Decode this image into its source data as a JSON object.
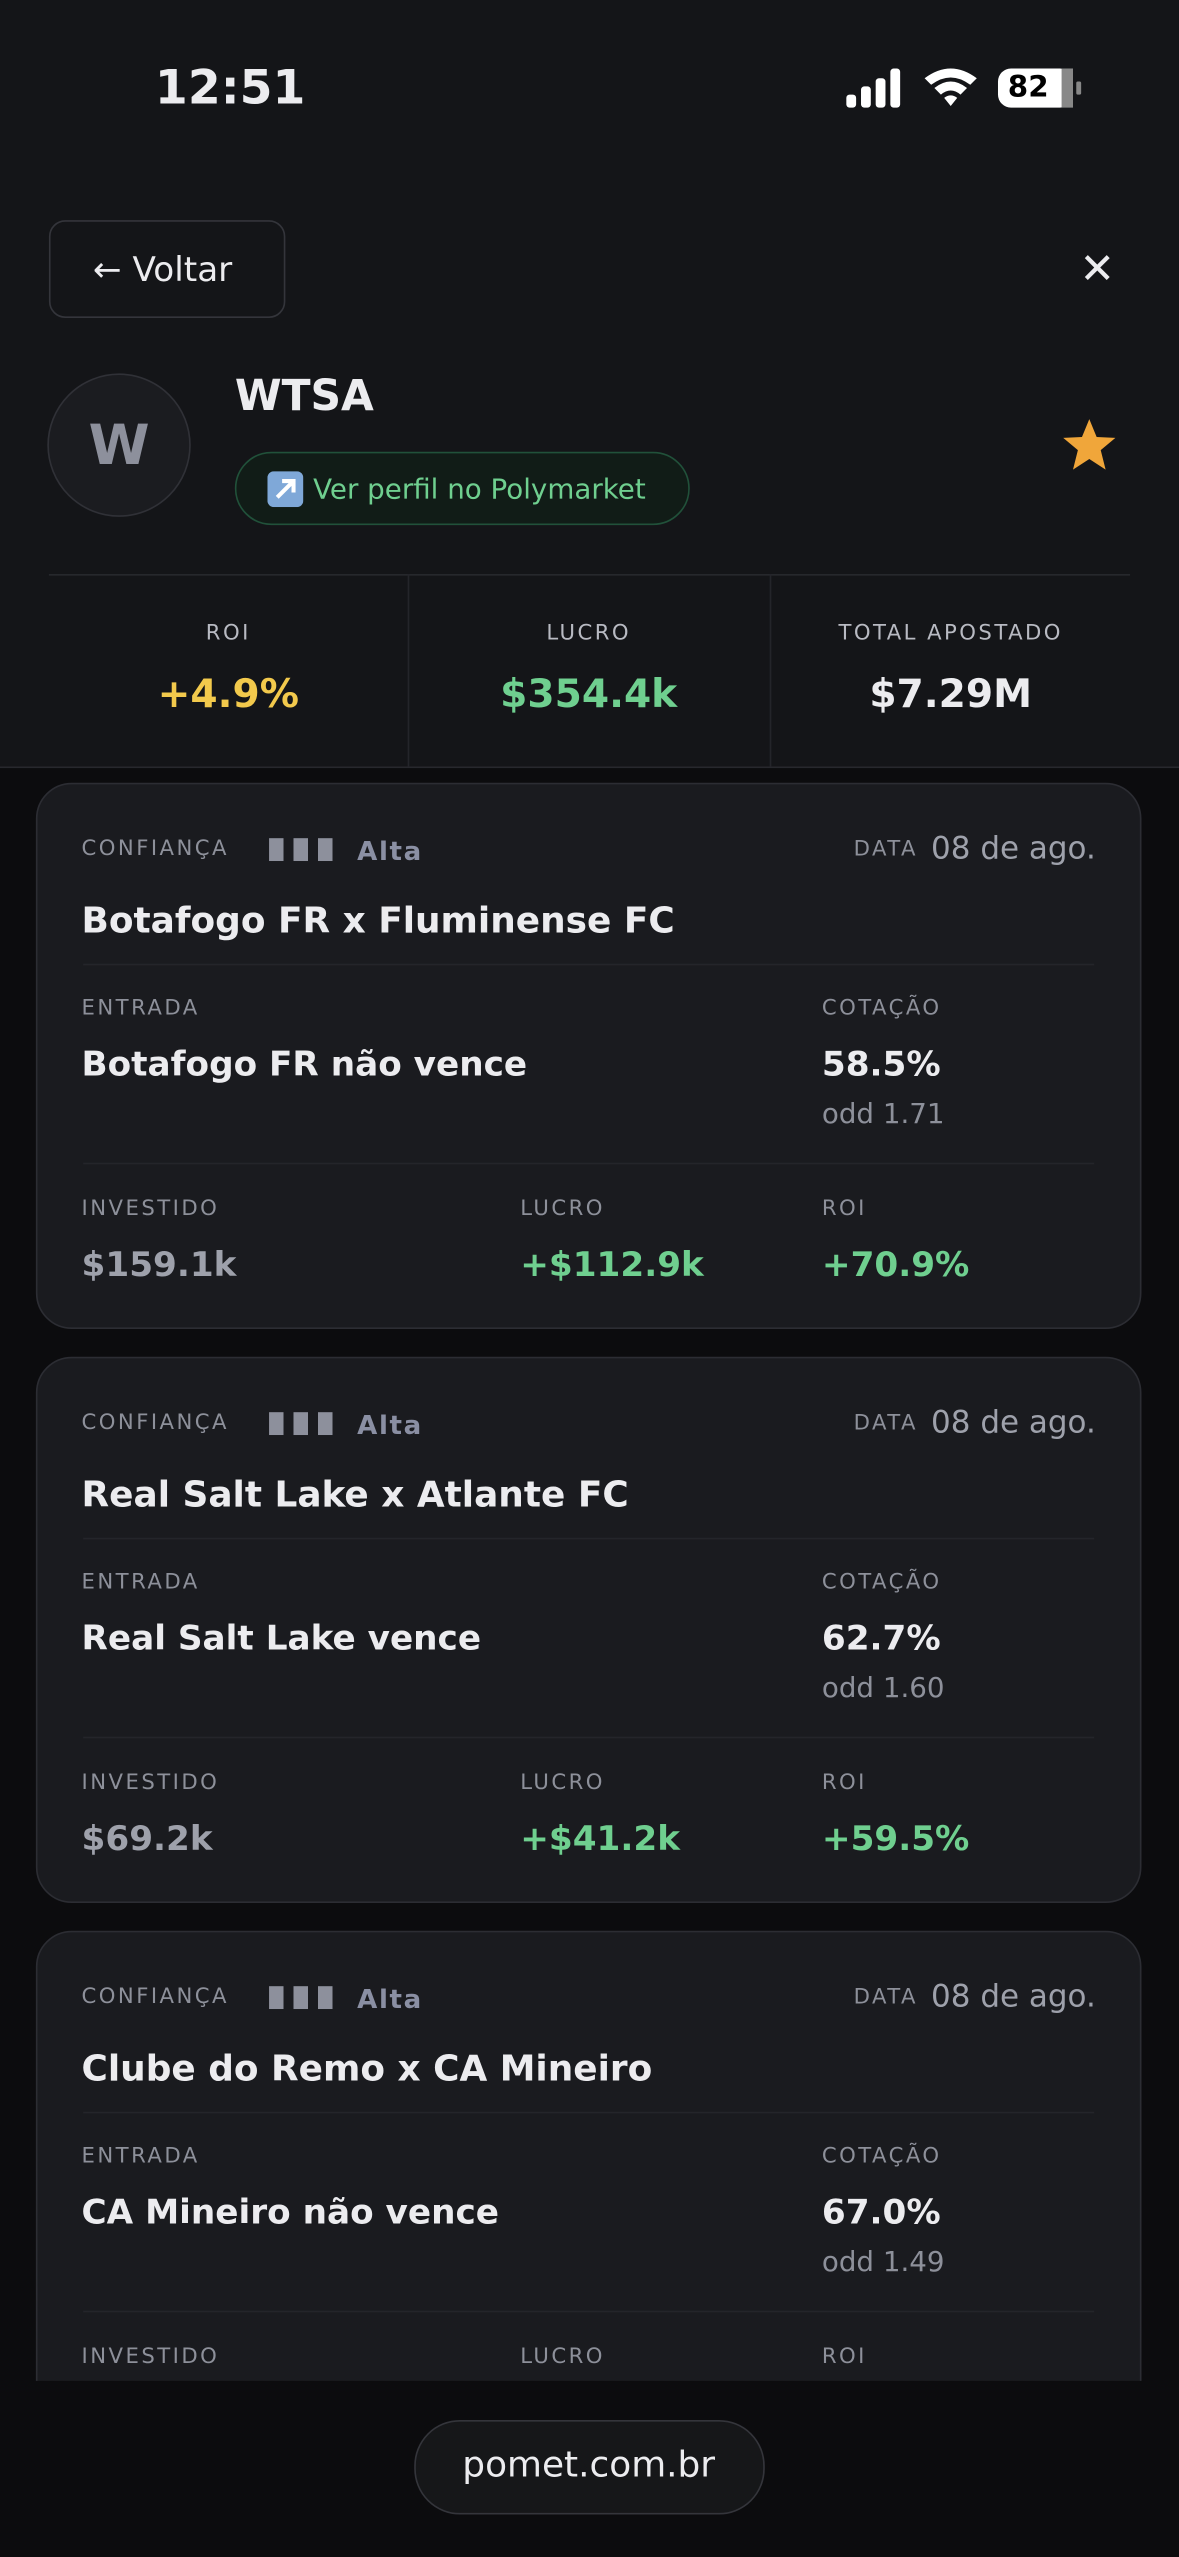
{
  "status_bar": {
    "time": "12:51",
    "battery": "82"
  },
  "header": {
    "back": "← Voltar",
    "close": "✕"
  },
  "profile": {
    "avatar": "W",
    "name": "WTSA",
    "link": "Ver perfil no Polymarket"
  },
  "stats": [
    {
      "label": "ROI",
      "value": "+4.9%"
    },
    {
      "label": "LUCRO",
      "value": "$354.4k"
    },
    {
      "label": "TOTAL APOSTADO",
      "value": "$7.29M"
    }
  ],
  "labels": {
    "confidence": "CONFIANÇA",
    "date": "DATA",
    "entry": "ENTRADA",
    "odds": "COTAÇÃO",
    "invested": "INVESTIDO",
    "profit": "LUCRO",
    "roi": "ROI"
  },
  "bets": [
    {
      "confidence": "Alta",
      "date": "08 de ago.",
      "match": "Botafogo FR x Fluminense FC",
      "entry": "Botafogo FR não vence",
      "probability": "58.5%",
      "odd": "odd 1.71",
      "invested": "$159.1k",
      "profit": "+$112.9k",
      "roi": "+70.9%"
    },
    {
      "confidence": "Alta",
      "date": "08 de ago.",
      "match": "Real Salt Lake x Atlante FC",
      "entry": "Real Salt Lake vence",
      "probability": "62.7%",
      "odd": "odd 1.60",
      "invested": "$69.2k",
      "profit": "+$41.2k",
      "roi": "+59.5%"
    },
    {
      "confidence": "Alta",
      "date": "08 de ago.",
      "match": "Clube do Remo x CA Mineiro",
      "entry": "CA Mineiro não vence",
      "probability": "67.0%",
      "odd": "odd 1.49"
    }
  ],
  "footer": {
    "url": "pomet.com.br"
  }
}
